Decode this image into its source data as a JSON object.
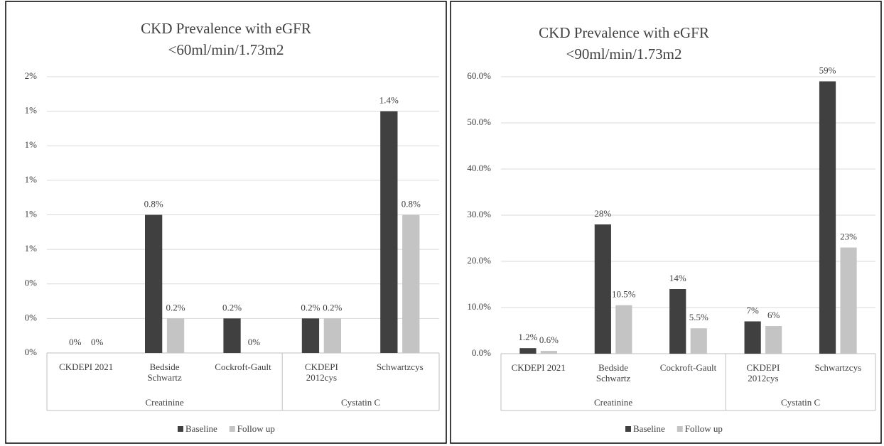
{
  "chart_data": [
    {
      "type": "bar",
      "title": "CKD Prevalence with eGFR\n<60ml/min/1.73m2",
      "groups": [
        {
          "name": "Creatinine",
          "categories": [
            "CKDEPI 2021",
            "Bedside\nSchwartz",
            "Cockroft-Gault"
          ]
        },
        {
          "name": "Cystatin C",
          "categories": [
            "CKDEPI\n2012cys",
            "Schwartzcys"
          ]
        }
      ],
      "series": [
        {
          "name": "Baseline",
          "color": "#404040",
          "values": [
            0,
            0.8,
            0.2,
            0.2,
            1.4
          ],
          "value_labels": [
            "0%",
            "0.8%",
            "0.2%",
            "0.2%",
            "1.4%"
          ]
        },
        {
          "name": "Follow up",
          "color": "#c4c4c4",
          "values": [
            0,
            0.2,
            0,
            0.2,
            0.8
          ],
          "value_labels": [
            "0%",
            "0.2%",
            "0%",
            "0.2%",
            "0.8%"
          ]
        }
      ],
      "ylim": [
        0,
        1.6
      ],
      "yticks": [
        {
          "value": 0,
          "label": "0%"
        },
        {
          "value": 0.2,
          "label": "0%"
        },
        {
          "value": 0.4,
          "label": "0%"
        },
        {
          "value": 0.6,
          "label": "1%"
        },
        {
          "value": 0.8,
          "label": "1%"
        },
        {
          "value": 1.0,
          "label": "1%"
        },
        {
          "value": 1.2,
          "label": "1%"
        },
        {
          "value": 1.4,
          "label": "1%"
        },
        {
          "value": 1.6,
          "label": "2%"
        }
      ],
      "grid": true,
      "legend": "bottom"
    },
    {
      "type": "bar",
      "title": "CKD Prevalence with eGFR\n<90ml/min/1.73m2",
      "groups": [
        {
          "name": "Creatinine",
          "categories": [
            "CKDEPI 2021",
            "Bedside\nSchwartz",
            "Cockroft-Gault"
          ]
        },
        {
          "name": "Cystatin C",
          "categories": [
            "CKDEPI\n2012cys",
            "Schwartzcys"
          ]
        }
      ],
      "series": [
        {
          "name": "Baseline",
          "color": "#404040",
          "values": [
            1.2,
            28,
            14,
            7,
            59
          ],
          "value_labels": [
            "1.2%",
            "28%",
            "14%",
            "7%",
            "59%"
          ]
        },
        {
          "name": "Follow up",
          "color": "#c4c4c4",
          "values": [
            0.6,
            10.5,
            5.5,
            6,
            23
          ],
          "value_labels": [
            "0.6%",
            "10.5%",
            "5.5%",
            "6%",
            "23%"
          ]
        }
      ],
      "ylim": [
        0,
        60
      ],
      "yticks": [
        {
          "value": 0,
          "label": "0.0%"
        },
        {
          "value": 10,
          "label": "10.0%"
        },
        {
          "value": 20,
          "label": "20.0%"
        },
        {
          "value": 30,
          "label": "30.0%"
        },
        {
          "value": 40,
          "label": "40.0%"
        },
        {
          "value": 50,
          "label": "50.0%"
        },
        {
          "value": 60,
          "label": "60.0%"
        }
      ],
      "grid": true,
      "legend": "bottom"
    }
  ]
}
